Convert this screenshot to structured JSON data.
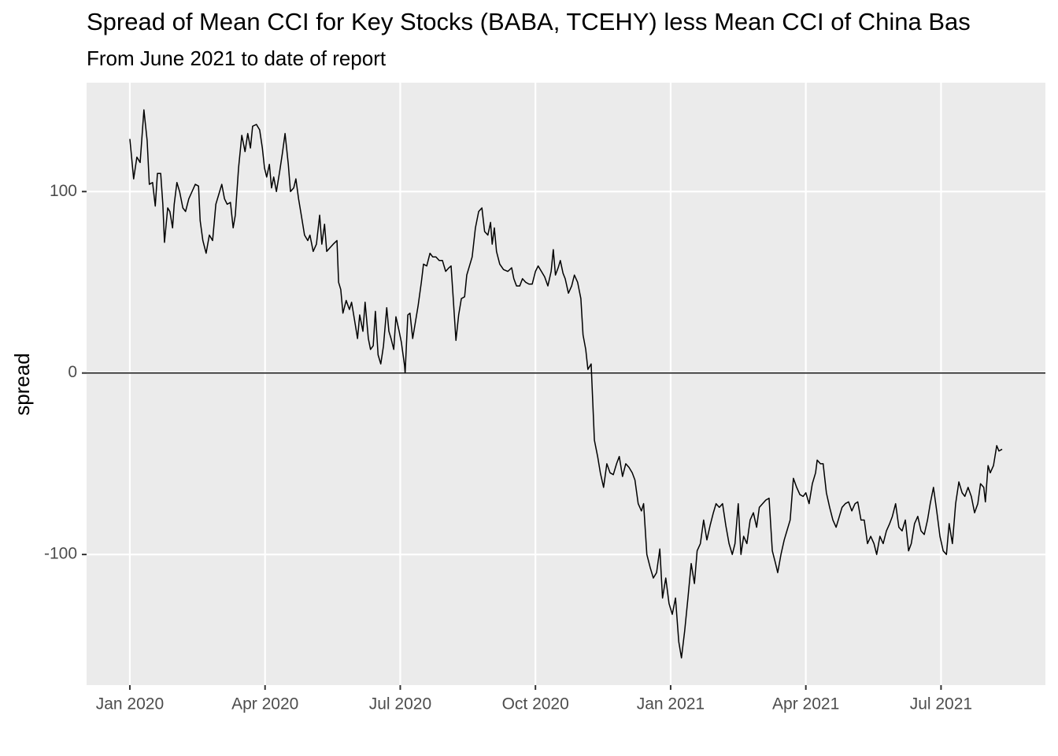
{
  "chart_data": {
    "type": "line",
    "title": "Spread of Mean CCI for Key Stocks (BABA, TCEHY) less Mean CCI of China Bas",
    "subtitle": "From June 2021 to date of report",
    "y_label": "spread",
    "x": [
      2020.0,
      2020.007,
      2020.013,
      2020.019,
      2020.026,
      2020.032,
      2020.036,
      2020.042,
      2020.047,
      2020.051,
      2020.057,
      2020.061,
      2020.064,
      2020.07,
      2020.074,
      2020.079,
      2020.082,
      2020.087,
      2020.092,
      2020.098,
      2020.103,
      2020.109,
      2020.115,
      2020.121,
      2020.127,
      2020.13,
      2020.135,
      2020.141,
      2020.147,
      2020.153,
      2020.159,
      2020.164,
      2020.17,
      2020.175,
      2020.18,
      2020.186,
      2020.191,
      2020.195,
      2020.201,
      2020.207,
      2020.213,
      2020.218,
      2020.223,
      2020.227,
      2020.234,
      2020.24,
      2020.245,
      2020.249,
      2020.253,
      2020.258,
      2020.262,
      2020.266,
      2020.271,
      2020.277,
      2020.282,
      2020.287,
      2020.293,
      2020.297,
      2020.303,
      2020.307,
      2020.312,
      2020.317,
      2020.323,
      2020.329,
      2020.333,
      2020.339,
      2020.345,
      2020.351,
      2020.355,
      2020.36,
      2020.364,
      2020.37,
      2020.376,
      2020.383,
      2020.386,
      2020.39,
      2020.394,
      2020.4,
      2020.406,
      2020.41,
      2020.415,
      2020.421,
      2020.425,
      2020.431,
      2020.435,
      2020.441,
      2020.445,
      2020.45,
      2020.454,
      2020.459,
      2020.464,
      2020.469,
      2020.475,
      2020.479,
      2020.483,
      2020.488,
      2020.492,
      2020.498,
      2020.502,
      2020.508,
      2020.509,
      2020.514,
      2020.518,
      2020.523,
      2020.528,
      2020.533,
      2020.539,
      2020.543,
      2020.549,
      2020.555,
      2020.56,
      2020.566,
      2020.572,
      2020.578,
      2020.584,
      2020.59,
      2020.594,
      2020.598,
      2020.603,
      2020.608,
      2020.613,
      2020.619,
      2020.623,
      2020.629,
      2020.633,
      2020.639,
      2020.645,
      2020.651,
      2020.656,
      2020.662,
      2020.667,
      2020.67,
      2020.674,
      2020.678,
      2020.684,
      2020.691,
      2020.699,
      2020.706,
      2020.71,
      2020.715,
      2020.721,
      2020.726,
      2020.732,
      2020.738,
      2020.744,
      2020.75,
      2020.755,
      2020.761,
      2020.767,
      2020.773,
      2020.779,
      2020.783,
      2020.787,
      2020.792,
      2020.796,
      2020.801,
      2020.805,
      2020.811,
      2020.817,
      2020.822,
      2020.828,
      2020.834,
      2020.838,
      2020.843,
      2020.847,
      2020.853,
      2020.859,
      2020.865,
      2020.87,
      2020.876,
      2020.882,
      2020.888,
      2020.894,
      2020.9,
      2020.905,
      2020.911,
      2020.917,
      2020.923,
      2020.929,
      2020.934,
      2020.94,
      2020.946,
      2020.95,
      2020.956,
      2020.962,
      2020.968,
      2020.974,
      2020.98,
      2020.985,
      2020.991,
      2020.997,
      2021.003,
      2021.009,
      2021.015,
      2021.02,
      2021.026,
      2021.032,
      2021.038,
      2021.044,
      2021.049,
      2021.055,
      2021.061,
      2021.067,
      2021.073,
      2021.079,
      2021.084,
      2021.09,
      2021.096,
      2021.102,
      2021.108,
      2021.114,
      2021.119,
      2021.125,
      2021.13,
      2021.135,
      2021.141,
      2021.147,
      2021.153,
      2021.159,
      2021.164,
      2021.17,
      2021.176,
      2021.182,
      2021.188,
      2021.194,
      2021.198,
      2021.204,
      2021.21,
      2021.215,
      2021.221,
      2021.227,
      2021.233,
      2021.239,
      2021.245,
      2021.25,
      2021.256,
      2021.262,
      2021.268,
      2021.271,
      2021.277,
      2021.282,
      2021.288,
      2021.294,
      2021.3,
      2021.306,
      2021.312,
      2021.317,
      2021.323,
      2021.329,
      2021.335,
      2021.341,
      2021.346,
      2021.352,
      2021.358,
      2021.364,
      2021.37,
      2021.376,
      2021.381,
      2021.387,
      2021.393,
      2021.399,
      2021.405,
      2021.41,
      2021.416,
      2021.422,
      2021.428,
      2021.434,
      2021.44,
      2021.445,
      2021.451,
      2021.457,
      2021.463,
      2021.469,
      2021.475,
      2021.48,
      2021.486,
      2021.492,
      2021.498,
      2021.504,
      2021.51,
      2021.515,
      2021.521,
      2021.527,
      2021.533,
      2021.539,
      2021.544,
      2021.55,
      2021.556,
      2021.562,
      2021.568,
      2021.573,
      2021.579,
      2021.582,
      2021.587,
      2021.591,
      2021.597,
      2021.603,
      2021.607,
      2021.613
    ],
    "series": [
      {
        "color": "#000000",
        "values": [
          129,
          107,
          119,
          116,
          145,
          128,
          104,
          105,
          92,
          110,
          110,
          93,
          72,
          91,
          89,
          80,
          93,
          105,
          100,
          91,
          89,
          96,
          100,
          104,
          103,
          84,
          73,
          66,
          76,
          73,
          93,
          98,
          104,
          96,
          93,
          94,
          80,
          87,
          113,
          131,
          122,
          132,
          124,
          136,
          137,
          134,
          124,
          113,
          108,
          115,
          102,
          108,
          100,
          111,
          121,
          132,
          115,
          100,
          102,
          107,
          96,
          87,
          76,
          73,
          76,
          67,
          71,
          87,
          71,
          82,
          67,
          69,
          71,
          73,
          50,
          46,
          33,
          40,
          35,
          39,
          30,
          19,
          32,
          23,
          39,
          19,
          13,
          15,
          34,
          10,
          5,
          15,
          36,
          23,
          19,
          13,
          31,
          23,
          17,
          4,
          0,
          32,
          33,
          19,
          28,
          37,
          50,
          60,
          59,
          66,
          64,
          64,
          62,
          62,
          56,
          58,
          59,
          41,
          18,
          32,
          41,
          42,
          54,
          60,
          64,
          80,
          89,
          91,
          78,
          76,
          83,
          71,
          80,
          67,
          60,
          57,
          56,
          58,
          52,
          48,
          48,
          52,
          50,
          49,
          49,
          56,
          59,
          56,
          53,
          48,
          56,
          68,
          54,
          58,
          62,
          55,
          52,
          44,
          48,
          54,
          50,
          41,
          21,
          13,
          2,
          5,
          -37,
          -46,
          -55,
          -63,
          -50,
          -55,
          -56,
          -50,
          -46,
          -57,
          -50,
          -52,
          -55,
          -59,
          -72,
          -76,
          -72,
          -100,
          -107,
          -113,
          -110,
          -97,
          -124,
          -113,
          -127,
          -133,
          -124,
          -148,
          -157,
          -142,
          -124,
          -105,
          -116,
          -98,
          -94,
          -81,
          -92,
          -84,
          -77,
          -72,
          -74,
          -72,
          -84,
          -94,
          -100,
          -94,
          -72,
          -100,
          -90,
          -94,
          -81,
          -77,
          -85,
          -74,
          -72,
          -70,
          -69,
          -98,
          -105,
          -110,
          -100,
          -92,
          -87,
          -81,
          -58,
          -63,
          -67,
          -68,
          -66,
          -72,
          -61,
          -55,
          -48,
          -50,
          -50,
          -66,
          -74,
          -81,
          -85,
          -79,
          -74,
          -72,
          -71,
          -76,
          -72,
          -71,
          -81,
          -81,
          -94,
          -90,
          -94,
          -100,
          -90,
          -94,
          -87,
          -83,
          -79,
          -72,
          -85,
          -87,
          -81,
          -98,
          -94,
          -83,
          -79,
          -87,
          -89,
          -81,
          -72,
          -63,
          -76,
          -90,
          -98,
          -100,
          -83,
          -94,
          -72,
          -60,
          -66,
          -68,
          -63,
          -68,
          -77,
          -72,
          -61,
          -63,
          -71,
          -51,
          -55,
          -51,
          -40,
          -43,
          -42
        ]
      }
    ],
    "xlim": [
      2019.92,
      2021.693
    ],
    "xticks": [
      {
        "value": 2020,
        "label": "Jan 2020"
      },
      {
        "value": 2020.25,
        "label": "Apr 2020"
      },
      {
        "value": 2020.5,
        "label": "Jul 2020"
      },
      {
        "value": 2020.75,
        "label": "Oct 2020"
      },
      {
        "value": 2021,
        "label": "Jan 2021"
      },
      {
        "value": 2021.25,
        "label": "Apr 2021"
      },
      {
        "value": 2021.5,
        "label": "Jul 2021"
      }
    ],
    "ylim": [
      -172,
      160
    ],
    "yticks": [
      -100,
      0,
      100
    ],
    "hline": 0,
    "grid": true
  }
}
